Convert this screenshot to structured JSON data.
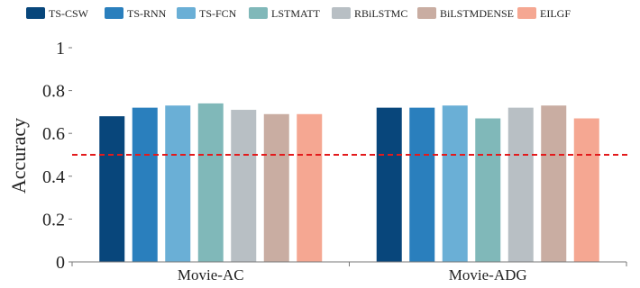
{
  "chart_data": {
    "type": "bar",
    "title": "",
    "xlabel": "",
    "ylabel": "Accuracy",
    "ylim": [
      0,
      1
    ],
    "yticks": [
      "0",
      "0.2",
      "0.4",
      "0.6",
      "0.8",
      "1"
    ],
    "grid": false,
    "legend_position": "top",
    "categories": [
      "Movie-AC",
      "Movie-ADG"
    ],
    "series": [
      {
        "name": "TS-CSW",
        "color": "#08467b",
        "values": [
          0.68,
          0.72
        ]
      },
      {
        "name": "TS-RNN",
        "color": "#2a7fbd",
        "values": [
          0.72,
          0.72
        ]
      },
      {
        "name": "TS-FCN",
        "color": "#6aafd6",
        "values": [
          0.73,
          0.73
        ]
      },
      {
        "name": "LSTMATT",
        "color": "#80b8b9",
        "values": [
          0.74,
          0.67
        ]
      },
      {
        "name": "RBiLSTMC",
        "color": "#b8bfc4",
        "values": [
          0.71,
          0.72
        ]
      },
      {
        "name": "BiLSTMDENSE",
        "color": "#c9ada2",
        "values": [
          0.69,
          0.73
        ]
      },
      {
        "name": "EILGF",
        "color": "#f5a792",
        "values": [
          0.69,
          0.67
        ]
      }
    ],
    "reference_line": {
      "value": 0.5,
      "color": "#e31a1c",
      "style": "dashed"
    }
  }
}
